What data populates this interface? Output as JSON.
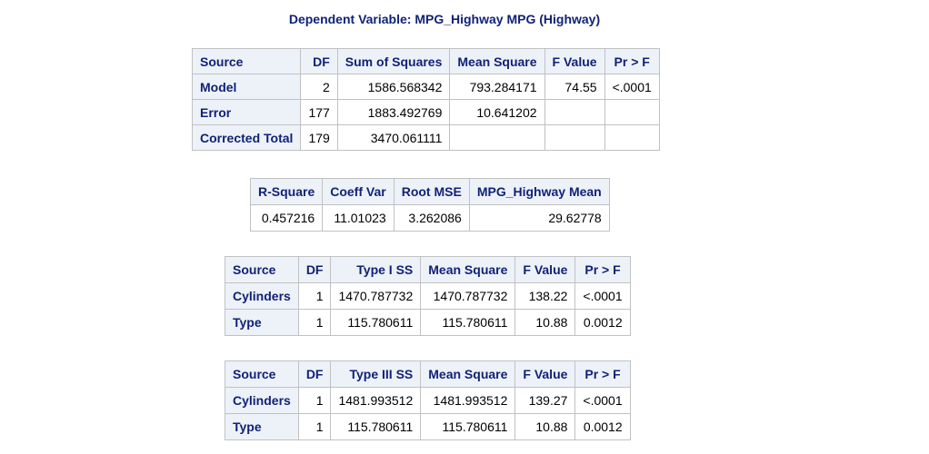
{
  "title": "Dependent Variable: MPG_Highway MPG (Highway)",
  "anova": {
    "headers": [
      "Source",
      "DF",
      "Sum of Squares",
      "Mean Square",
      "F Value",
      "Pr > F"
    ],
    "rows": [
      {
        "source": "Model",
        "df": "2",
        "ss": "1586.568342",
        "ms": "793.284171",
        "f": "74.55",
        "p": "<.0001"
      },
      {
        "source": "Error",
        "df": "177",
        "ss": "1883.492769",
        "ms": "10.641202",
        "f": "",
        "p": ""
      },
      {
        "source": "Corrected Total",
        "df": "179",
        "ss": "3470.061111",
        "ms": "",
        "f": "",
        "p": ""
      }
    ]
  },
  "fit": {
    "headers": [
      "R-Square",
      "Coeff Var",
      "Root MSE",
      "MPG_Highway Mean"
    ],
    "values": [
      "0.457216",
      "11.01023",
      "3.262086",
      "29.62778"
    ]
  },
  "type1": {
    "headers": [
      "Source",
      "DF",
      "Type I SS",
      "Mean Square",
      "F Value",
      "Pr > F"
    ],
    "rows": [
      {
        "source": "Cylinders",
        "df": "1",
        "ss": "1470.787732",
        "ms": "1470.787732",
        "f": "138.22",
        "p": "<.0001"
      },
      {
        "source": "Type",
        "df": "1",
        "ss": "115.780611",
        "ms": "115.780611",
        "f": "10.88",
        "p": "0.0012"
      }
    ]
  },
  "type3": {
    "headers": [
      "Source",
      "DF",
      "Type III SS",
      "Mean Square",
      "F Value",
      "Pr > F"
    ],
    "rows": [
      {
        "source": "Cylinders",
        "df": "1",
        "ss": "1481.993512",
        "ms": "1481.993512",
        "f": "139.27",
        "p": "<.0001"
      },
      {
        "source": "Type",
        "df": "1",
        "ss": "115.780611",
        "ms": "115.780611",
        "f": "10.88",
        "p": "0.0012"
      }
    ]
  }
}
